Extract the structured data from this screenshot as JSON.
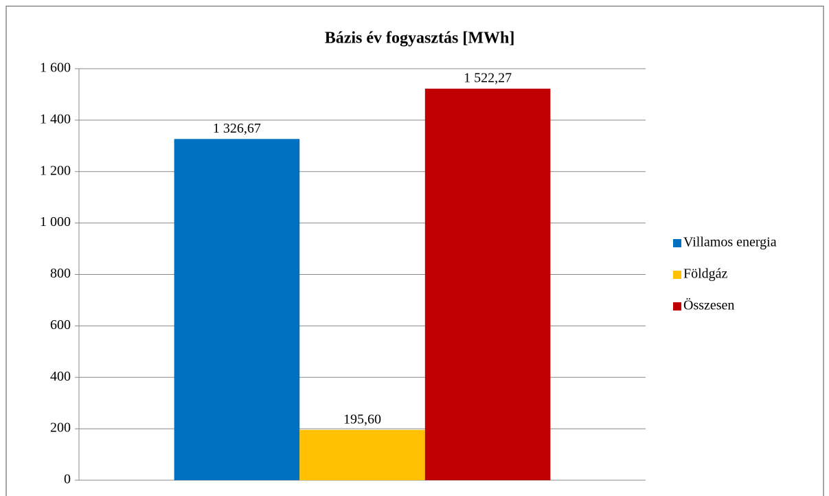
{
  "chart_data": {
    "type": "bar",
    "title": "Bázis év fogyasztás [MWh]",
    "categories": [
      null
    ],
    "series": [
      {
        "name": "Villamos energia",
        "color": "#0070c0",
        "values": [
          1326.67
        ],
        "value_labels": [
          "1 326,67"
        ]
      },
      {
        "name": "Földgáz",
        "color": "#ffc000",
        "values": [
          195.6
        ],
        "value_labels": [
          "195,60"
        ]
      },
      {
        "name": "Összesen",
        "color": "#c00000",
        "values": [
          1522.27
        ],
        "value_labels": [
          "1 522,27"
        ]
      }
    ],
    "ylim": [
      0,
      1600
    ],
    "yticks": [
      0,
      200,
      400,
      600,
      800,
      {
        "value": 1000,
        "label": "1 000"
      },
      {
        "value": 1200,
        "label": "1 200"
      },
      {
        "value": 1400,
        "label": "1 400"
      },
      {
        "value": 1600,
        "label": "1 600"
      }
    ],
    "grid": true,
    "legend": "right"
  }
}
